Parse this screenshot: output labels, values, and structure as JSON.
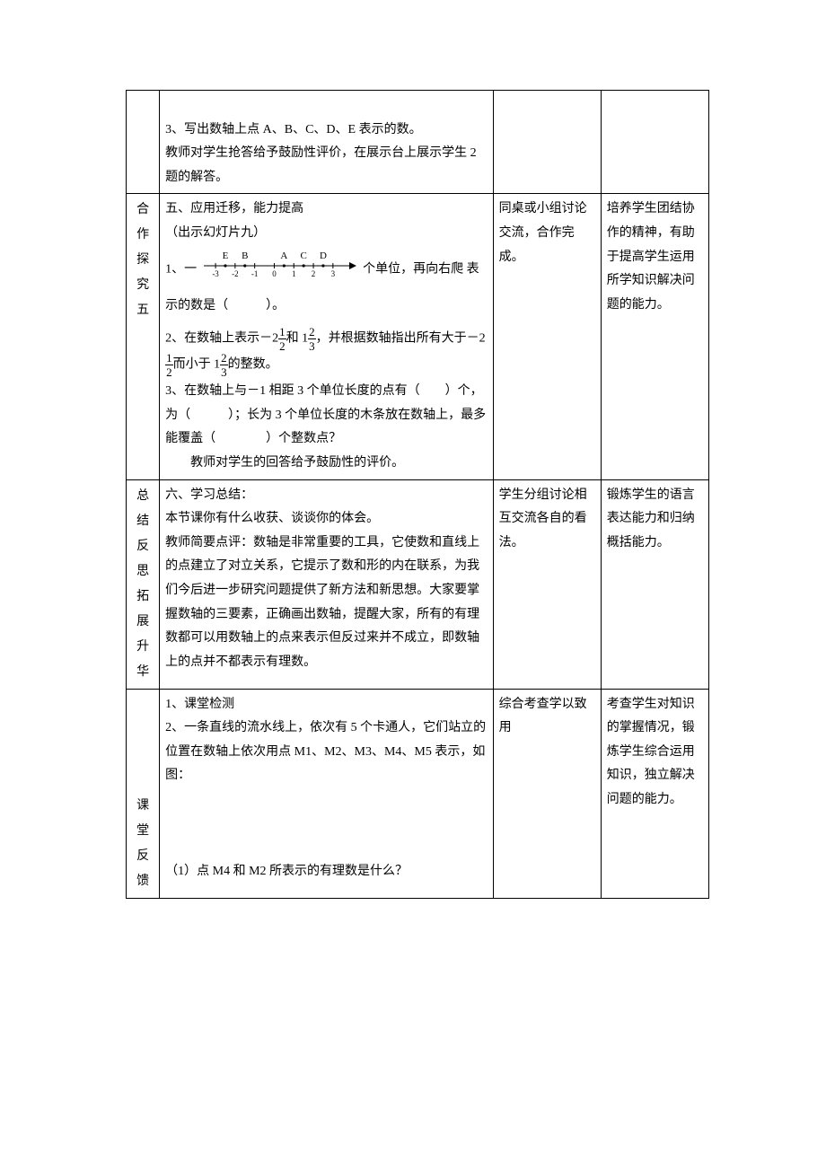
{
  "rows": [
    {
      "label": "",
      "main_lines": [
        "",
        "3、写出数轴上点 A、B、C、D、E 表示的数。",
        "教师对学生抢答给予鼓励性评价，在展示台上展示学生 2 题的解答。"
      ],
      "activity": "",
      "purpose": ""
    }
  ],
  "row2": {
    "label_chars": [
      "合",
      "作",
      "探",
      "究",
      "五"
    ],
    "main": {
      "title": "五、应用迁移，能力提高",
      "subtitle": "（出示幻灯片九）",
      "q1_pre": "1、一",
      "q1_mid": "个单位，再向右爬",
      "q1_post": "表示的数是（　　　）。",
      "numberline": {
        "letters": [
          "E",
          "B",
          "A",
          "C",
          "D"
        ],
        "letter_pos": [
          -2.5,
          -1.5,
          0.5,
          1.5,
          2.5
        ],
        "ticks": [
          -3,
          -2,
          -1,
          0,
          1,
          2,
          3
        ],
        "tick_labels": [
          "-3",
          "-2",
          "-1",
          "0",
          "1",
          "2",
          "3"
        ],
        "x_min": -3.6,
        "x_max": 4.2,
        "stroke": "#000000"
      },
      "q2_a": "2、在数轴上表示－2",
      "q2_b": "和 1",
      "q2_c": "，并根据数轴指出所有大于－2",
      "q2_d": "而小于 1",
      "q2_e": "的整数。",
      "frac_half": {
        "n": "1",
        "d": "2"
      },
      "frac_twothird": {
        "n": "2",
        "d": "3"
      },
      "q3": "3、在数轴上与－1 相距 3 个单位长度的点有（　　）个，为（　　　）；长为 3 个单位长度的木条放在数轴上，最多能覆盖（　　　　）个整数点？",
      "foot": "教师对学生的回答给予鼓励性的评价。"
    },
    "activity": "同桌或小组讨论交流，合作完成。",
    "purpose": "培养学生团结协作的精神，有助于提高学生运用所学知识解决问题的能力。"
  },
  "row3": {
    "label_chars": [
      "总",
      "结",
      "反",
      "思",
      "",
      "拓",
      "展",
      "升",
      "华"
    ],
    "main_lines": [
      "六、学习总结：",
      "本节课你有什么收获、谈谈你的体会。",
      "教师简要点评：数轴是非常重要的工具，它使数和直线上的点建立了对立关系，它提示了数和形的内在联系，为我们今后进一步研究问题提供了新方法和新思想。大家要掌握数轴的三要素，正确画出数轴，提醒大家，所有的有理数都可以用数轴上的点来表示但反过来并不成立，即数轴上的点并不都表示有理数。"
    ],
    "activity": "学生分组讨论相互交流各自的看法。",
    "purpose": "锻炼学生的语言表达能力和归纳概括能力。"
  },
  "row4": {
    "label_chars": [
      "",
      "",
      "",
      "",
      "课",
      "堂",
      "反",
      "馈"
    ],
    "main_lines": [
      "1、课堂检测",
      "2、一条直线的流水线上，依次有 5 个卡通人，它们站立的位置在数轴上依次用点 M1、M2、M3、M4、M5 表示，如图：",
      "",
      "",
      "",
      "（1）点 M4 和 M2 所表示的有理数是什么？"
    ],
    "activity": "综合考查学以致用",
    "purpose": "考查学生对知识的掌握情况，锻炼学生综合运用知识，独立解决问题的能力。"
  }
}
